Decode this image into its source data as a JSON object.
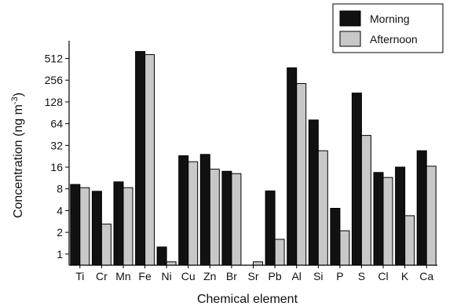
{
  "chart_data": {
    "type": "bar",
    "xlabel": "Chemical element",
    "ylabel": "Concentration (ng m",
    "ylabel_superscript": "-3",
    "ylabel_suffix": ")",
    "y_scale": "log2",
    "ylim": [
      0.7,
      900
    ],
    "y_ticks": [
      1,
      2,
      4,
      8,
      16,
      32,
      64,
      128,
      256,
      512
    ],
    "y_tick_labels": [
      "1",
      "2",
      "4",
      "8",
      "16",
      "32",
      "64",
      "128",
      "256",
      "512"
    ],
    "legend_position": "top-right",
    "categories": [
      "Ti",
      "Cr",
      "Mn",
      "Fe",
      "Ni",
      "Cu",
      "Zn",
      "Br",
      "Sr",
      "Pb",
      "Al",
      "Si",
      "P",
      "S",
      "Cl",
      "K",
      "Ca"
    ],
    "series": [
      {
        "name": "Morning",
        "color": "#111111",
        "values": [
          9.2,
          7.4,
          10.0,
          640,
          1.25,
          23,
          24,
          14,
          0.6,
          7.5,
          380,
          72,
          4.3,
          170,
          13.5,
          16,
          27
        ]
      },
      {
        "name": "Afternoon",
        "color": "#c8c8c8",
        "values": [
          8.3,
          2.6,
          8.3,
          580,
          0.78,
          19,
          15,
          13,
          0.78,
          1.6,
          230,
          27,
          2.1,
          44,
          11.5,
          3.4,
          16.5
        ]
      }
    ]
  }
}
